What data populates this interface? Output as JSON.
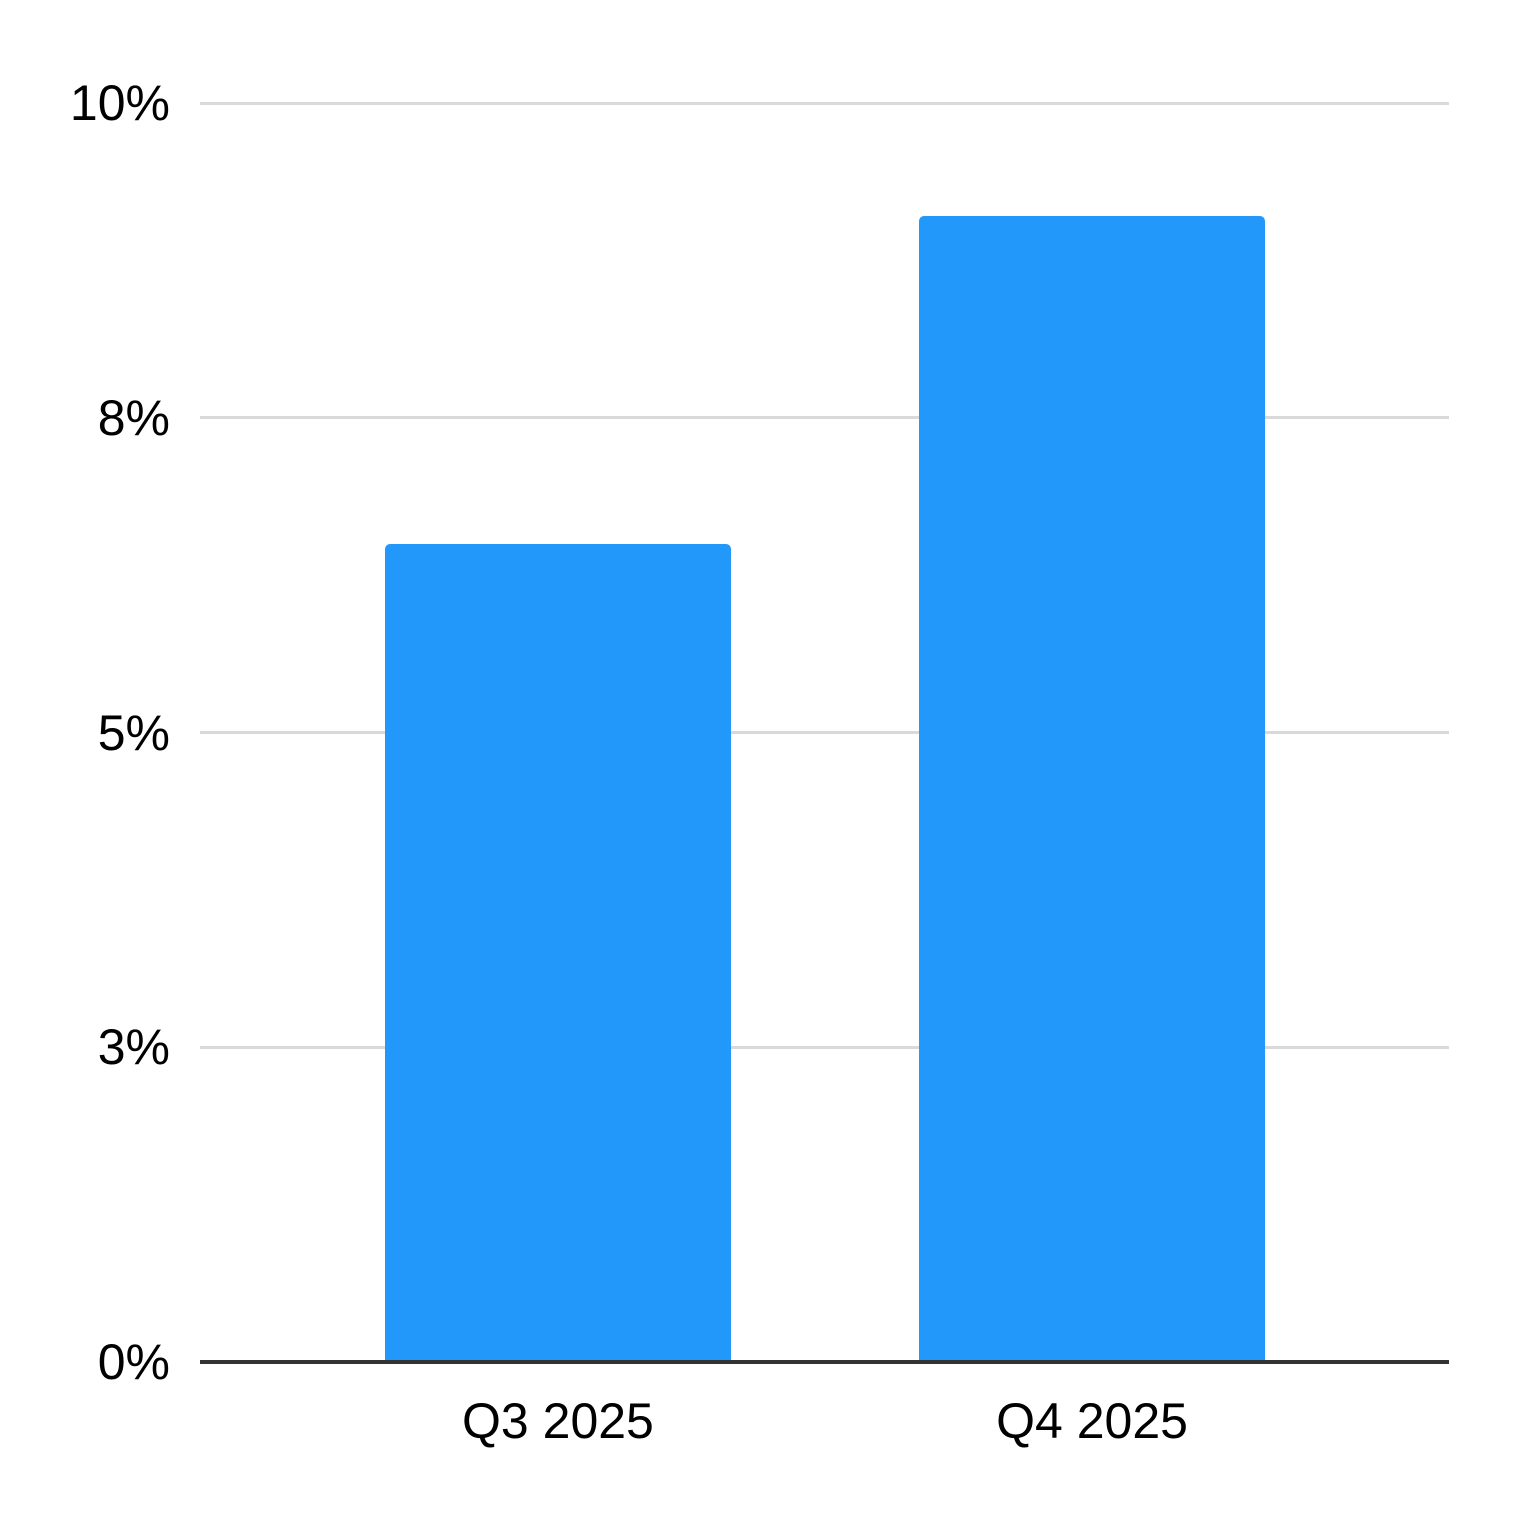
{
  "chart_data": {
    "type": "bar",
    "categories": [
      "Q3 2025",
      "Q4 2025"
    ],
    "values": [
      6.5,
      9.1
    ],
    "value_format": "percent",
    "ylim": [
      0,
      10
    ],
    "yticks": [
      {
        "value": 0,
        "label": "0%"
      },
      {
        "value": 2.5,
        "label": "3%"
      },
      {
        "value": 5,
        "label": "5%"
      },
      {
        "value": 7.5,
        "label": "8%"
      },
      {
        "value": 10,
        "label": "10%"
      }
    ],
    "grid": true,
    "legend": "none",
    "colors": {
      "bar": "#2298fb",
      "gridline": "#d9d9d9",
      "axis_line": "#333333",
      "tick_text": "#000000",
      "background": "#ffffff"
    }
  }
}
